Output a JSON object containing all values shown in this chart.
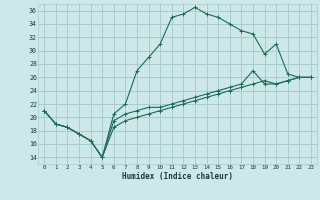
{
  "xlabel": "Humidex (Indice chaleur)",
  "bg_color": "#cde8e8",
  "grid_color": "#aacccc",
  "line_color": "#1a6b5a",
  "xlim": [
    -0.5,
    23.5
  ],
  "ylim": [
    13,
    37
  ],
  "xticks": [
    0,
    1,
    2,
    3,
    4,
    5,
    6,
    7,
    8,
    9,
    10,
    11,
    12,
    13,
    14,
    15,
    16,
    17,
    18,
    19,
    20,
    21,
    22,
    23
  ],
  "yticks": [
    14,
    16,
    18,
    20,
    22,
    24,
    26,
    28,
    30,
    32,
    34,
    36
  ],
  "line1_x": [
    0,
    1,
    2,
    3,
    4,
    5,
    6,
    7,
    8,
    9,
    10,
    11,
    12,
    13,
    14,
    15,
    16,
    17,
    18,
    19,
    20,
    21,
    22,
    23
  ],
  "line1_y": [
    21.0,
    19.0,
    18.5,
    17.5,
    16.5,
    14.0,
    20.5,
    22.0,
    27.0,
    29.0,
    31.0,
    35.0,
    35.5,
    36.5,
    35.5,
    35.0,
    34.0,
    33.0,
    32.5,
    29.5,
    31.0,
    26.5,
    26.0,
    26.0
  ],
  "line2_x": [
    0,
    1,
    2,
    3,
    4,
    5,
    6,
    7,
    8,
    9,
    10,
    11,
    12,
    13,
    14,
    15,
    16,
    17,
    18,
    19,
    20,
    21,
    22,
    23
  ],
  "line2_y": [
    21.0,
    19.0,
    18.5,
    17.5,
    16.5,
    14.0,
    19.5,
    20.5,
    21.0,
    21.5,
    21.5,
    22.0,
    22.5,
    23.0,
    23.5,
    24.0,
    24.5,
    25.0,
    27.0,
    25.0,
    25.0,
    25.5,
    26.0,
    26.0
  ],
  "line3_x": [
    0,
    1,
    2,
    3,
    4,
    5,
    6,
    7,
    8,
    9,
    10,
    11,
    12,
    13,
    14,
    15,
    16,
    17,
    18,
    19,
    20,
    21,
    22,
    23
  ],
  "line3_y": [
    21.0,
    19.0,
    18.5,
    17.5,
    16.5,
    14.0,
    18.5,
    19.5,
    20.0,
    20.5,
    21.0,
    21.5,
    22.0,
    22.5,
    23.0,
    23.5,
    24.0,
    24.5,
    25.0,
    25.5,
    25.0,
    25.5,
    26.0,
    26.0
  ]
}
